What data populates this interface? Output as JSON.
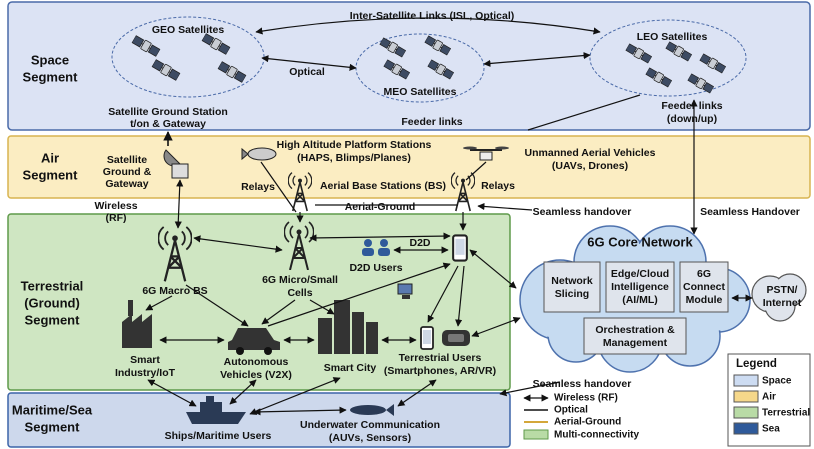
{
  "segments": {
    "space": [
      "Space",
      "Segment"
    ],
    "air": [
      "Air",
      "Segment"
    ],
    "terrestrial": [
      "Terrestrial",
      "(Ground)",
      "Segment"
    ],
    "sea": [
      "Maritime/Sea",
      "Segment"
    ]
  },
  "space": {
    "isl": "Inter-Satellite Links (ISL, Optical)",
    "geo": "GEO Satellites",
    "optical": "Optical",
    "meo": "MEO Satellites",
    "leo": "LEO Satellites",
    "ground_station": [
      "Satellite Ground Station",
      "t/on & Gateway"
    ],
    "feeder_links": "Feeder links",
    "feeder_links_leo": [
      "Feeder links",
      "(down/up)"
    ]
  },
  "air": {
    "gateway": [
      "Satellite",
      "Ground &",
      "Gateway"
    ],
    "haps": [
      "High Altitude Platform Stations",
      "(HAPS, Blimps/Planes)"
    ],
    "uav": [
      "Unmanned Aerial Vehicles",
      "(UAVs, Drones)"
    ],
    "relays_left": "Relays",
    "aerial_bs": "Aerial Base Stations (BS)",
    "relays_right": "Relays"
  },
  "links": {
    "wireless": [
      "Wireless",
      "(RF)"
    ],
    "aerial_ground": "Aerial-Ground",
    "seamless_handover_air": "Seamless handover",
    "seamless_handover_core": "Seamless Handover",
    "seamless_handover_sea": "Seamless handover"
  },
  "terrestrial": {
    "macro_bs": "6G Macro BS",
    "micro_cells": [
      "6G Micro/Small",
      "Cells"
    ],
    "d2d": "D2D",
    "d2d_users": "D2D Users",
    "industry": [
      "Smart",
      "Industry/IoT"
    ],
    "vehicles": [
      "Autonomous",
      "Vehicles (V2X)"
    ],
    "smart_city": "Smart City",
    "users": [
      "Terrestrial Users",
      "(Smartphones, AR/VR)"
    ]
  },
  "core": {
    "title": "6G Core Network",
    "slicing": [
      "Network",
      "Slicing"
    ],
    "edge": [
      "Edge/Cloud",
      "Intelligence",
      "(AI/ML)"
    ],
    "connect": [
      "6G",
      "Connect",
      "Module"
    ],
    "orchestration": [
      "Orchestration &",
      "Management"
    ],
    "pstn": [
      "PSTN/",
      "Internet"
    ]
  },
  "sea": {
    "ships": "Ships/Maritime Users",
    "underwater": [
      "Underwater Communication",
      "(AUVs, Sensors)"
    ]
  },
  "legend": {
    "title": "Legend",
    "items": [
      "Space",
      "Air",
      "Terrestrial",
      "Sea"
    ],
    "lines": [
      "Wireless (RF)",
      "Optical",
      "Aerial-Ground",
      "Multi-connectivity"
    ]
  }
}
